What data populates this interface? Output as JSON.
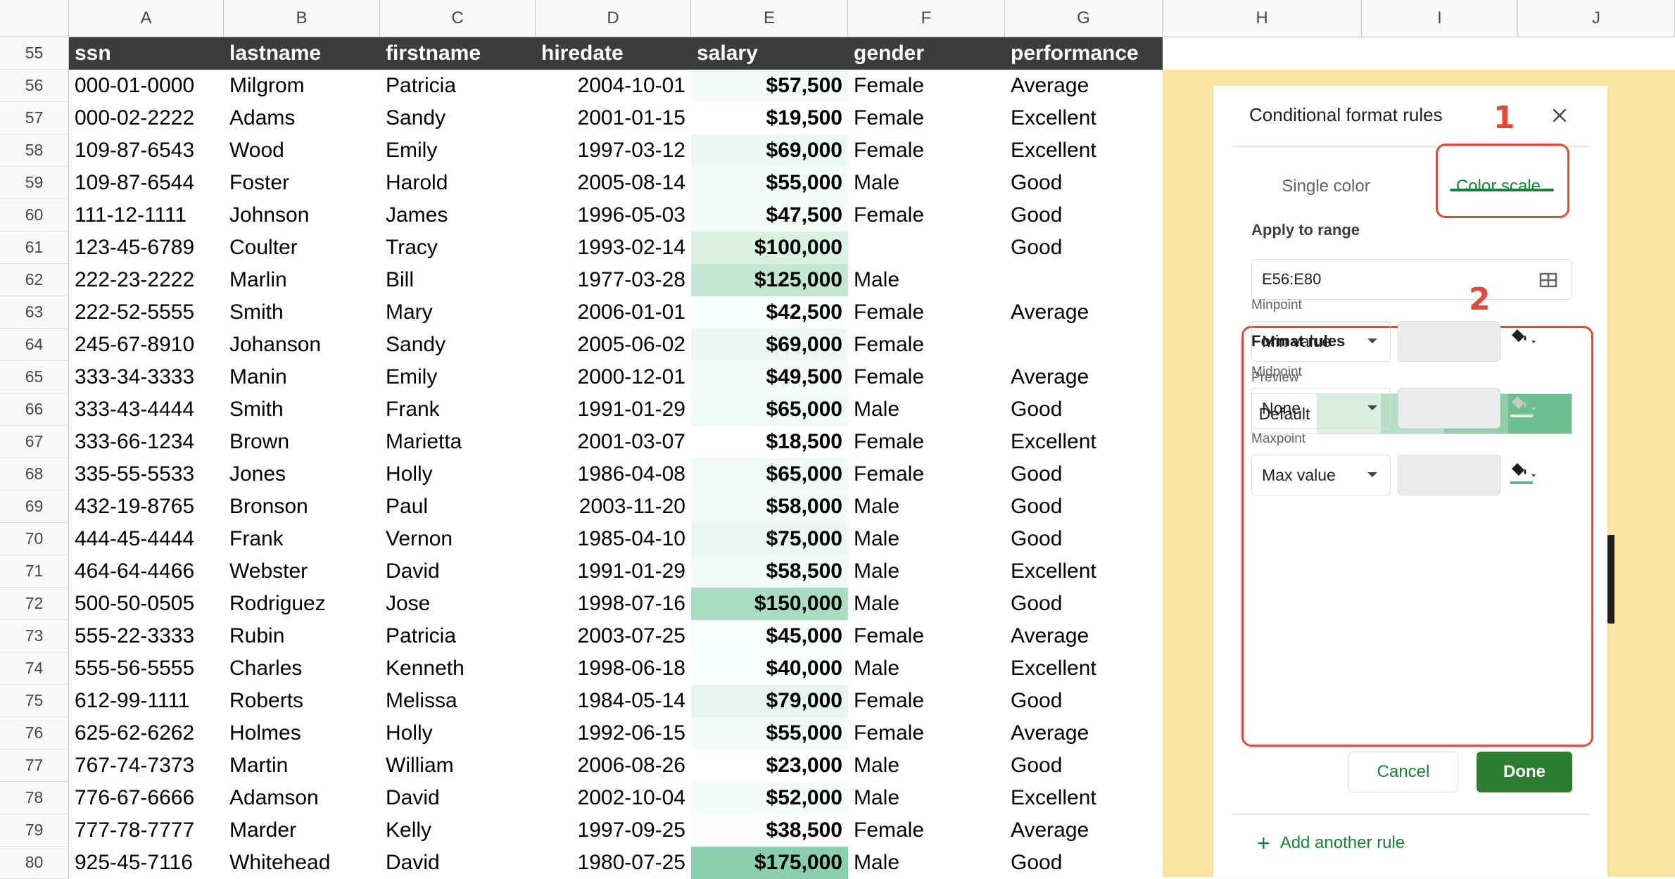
{
  "sheet": {
    "column_letters": [
      "A",
      "B",
      "C",
      "D",
      "E",
      "F",
      "G",
      "H",
      "I",
      "J"
    ],
    "header_row_number": "55",
    "headers": [
      "ssn",
      "lastname",
      "firstname",
      "hiredate",
      "salary",
      "gender",
      "performance"
    ],
    "rows": [
      {
        "num": "56",
        "ssn": "000-01-0000",
        "lastname": "Milgrom",
        "firstname": "Patricia",
        "hiredate": "2004-10-01",
        "salary": "$57,500",
        "gender": "Female",
        "performance": "Average",
        "scale": 0.25
      },
      {
        "num": "57",
        "ssn": "000-02-2222",
        "lastname": "Adams",
        "firstname": "Sandy",
        "hiredate": "2001-01-15",
        "salary": "$19,500",
        "gender": "Female",
        "performance": "Excellent",
        "scale": 0.01
      },
      {
        "num": "58",
        "ssn": "109-87-6543",
        "lastname": "Wood",
        "firstname": "Emily",
        "hiredate": "1997-03-12",
        "salary": "$69,000",
        "gender": "Female",
        "performance": "Excellent",
        "scale": 0.32
      },
      {
        "num": "59",
        "ssn": "109-87-6544",
        "lastname": "Foster",
        "firstname": "Harold",
        "hiredate": "2005-08-14",
        "salary": "$55,000",
        "gender": "Male",
        "performance": "Good",
        "scale": 0.23
      },
      {
        "num": "60",
        "ssn": "111-12-1111",
        "lastname": "Johnson",
        "firstname": "James",
        "hiredate": "1996-05-03",
        "salary": "$47,500",
        "gender": "Female",
        "performance": "Good",
        "scale": 0.18
      },
      {
        "num": "61",
        "ssn": "123-45-6789",
        "lastname": "Coulter",
        "firstname": "Tracy",
        "hiredate": "1993-02-14",
        "salary": "$100,000",
        "gender": "",
        "performance": "Good",
        "scale": 0.52
      },
      {
        "num": "62",
        "ssn": "222-23-2222",
        "lastname": "Marlin",
        "firstname": "Bill",
        "hiredate": "1977-03-28",
        "salary": "$125,000",
        "gender": "Male",
        "performance": "",
        "scale": 0.68
      },
      {
        "num": "63",
        "ssn": "222-52-5555",
        "lastname": "Smith",
        "firstname": "Mary",
        "hiredate": "2006-01-01",
        "salary": "$42,500",
        "gender": "Female",
        "performance": "Average",
        "scale": 0.15
      },
      {
        "num": "64",
        "ssn": "245-67-8910",
        "lastname": "Johanson",
        "firstname": "Sandy",
        "hiredate": "2005-06-02",
        "salary": "$69,000",
        "gender": "Female",
        "performance": "",
        "scale": 0.32
      },
      {
        "num": "65",
        "ssn": "333-34-3333",
        "lastname": "Manin",
        "firstname": "Emily",
        "hiredate": "2000-12-01",
        "salary": "$49,500",
        "gender": "Female",
        "performance": "Average",
        "scale": 0.2
      },
      {
        "num": "66",
        "ssn": "333-43-4444",
        "lastname": "Smith",
        "firstname": "Frank",
        "hiredate": "1991-01-29",
        "salary": "$65,000",
        "gender": "Male",
        "performance": "Good",
        "scale": 0.29
      },
      {
        "num": "67",
        "ssn": "333-66-1234",
        "lastname": "Brown",
        "firstname": "Marietta",
        "hiredate": "2001-03-07",
        "salary": "$18,500",
        "gender": "Female",
        "performance": "Excellent",
        "scale": 0.0
      },
      {
        "num": "68",
        "ssn": "335-55-5533",
        "lastname": "Jones",
        "firstname": "Holly",
        "hiredate": "1986-04-08",
        "salary": "$65,000",
        "gender": "Female",
        "performance": "Good",
        "scale": 0.29
      },
      {
        "num": "69",
        "ssn": "432-19-8765",
        "lastname": "Bronson",
        "firstname": "Paul",
        "hiredate": "2003-11-20",
        "salary": "$58,000",
        "gender": "Male",
        "performance": "Good",
        "scale": 0.25
      },
      {
        "num": "70",
        "ssn": "444-45-4444",
        "lastname": "Frank",
        "firstname": "Vernon",
        "hiredate": "1985-04-10",
        "salary": "$75,000",
        "gender": "Male",
        "performance": "Good",
        "scale": 0.36
      },
      {
        "num": "71",
        "ssn": "464-64-4466",
        "lastname": "Webster",
        "firstname": "David",
        "hiredate": "1991-01-29",
        "salary": "$58,500",
        "gender": "Male",
        "performance": "Excellent",
        "scale": 0.26
      },
      {
        "num": "72",
        "ssn": "500-50-0505",
        "lastname": "Rodriguez",
        "firstname": "Jose",
        "hiredate": "1998-07-16",
        "salary": "$150,000",
        "gender": "Male",
        "performance": "Good",
        "scale": 0.84
      },
      {
        "num": "73",
        "ssn": "555-22-3333",
        "lastname": "Rubin",
        "firstname": "Patricia",
        "hiredate": "2003-07-25",
        "salary": "$45,000",
        "gender": "Female",
        "performance": "Average",
        "scale": 0.17
      },
      {
        "num": "74",
        "ssn": "555-56-5555",
        "lastname": "Charles",
        "firstname": "Kenneth",
        "hiredate": "1998-06-18",
        "salary": "$40,000",
        "gender": "Male",
        "performance": "Excellent",
        "scale": 0.14
      },
      {
        "num": "75",
        "ssn": "612-99-1111",
        "lastname": "Roberts",
        "firstname": "Melissa",
        "hiredate": "1984-05-14",
        "salary": "$79,000",
        "gender": "Female",
        "performance": "Good",
        "scale": 0.39
      },
      {
        "num": "76",
        "ssn": "625-62-6262",
        "lastname": "Holmes",
        "firstname": "Holly",
        "hiredate": "1992-06-15",
        "salary": "$55,000",
        "gender": "Female",
        "performance": "Average",
        "scale": 0.23
      },
      {
        "num": "77",
        "ssn": "767-74-7373",
        "lastname": "Martin",
        "firstname": "William",
        "hiredate": "2006-08-26",
        "salary": "$23,000",
        "gender": "Male",
        "performance": "Good",
        "scale": 0.03
      },
      {
        "num": "78",
        "ssn": "776-67-6666",
        "lastname": "Adamson",
        "firstname": "David",
        "hiredate": "2002-10-04",
        "salary": "$52,000",
        "gender": "Male",
        "performance": "Excellent",
        "scale": 0.21
      },
      {
        "num": "79",
        "ssn": "777-78-7777",
        "lastname": "Marder",
        "firstname": "Kelly",
        "hiredate": "1997-09-25",
        "salary": "$38,500",
        "gender": "Female",
        "performance": "Average",
        "scale": 0.13
      },
      {
        "num": "80",
        "ssn": "925-45-7116",
        "lastname": "Whitehead",
        "firstname": "David",
        "hiredate": "1980-07-25",
        "salary": "$175,000",
        "gender": "Male",
        "performance": "Good",
        "scale": 1.0
      }
    ]
  },
  "panel": {
    "title": "Conditional format rules",
    "tabs": [
      {
        "label": "Single color"
      },
      {
        "label": "Color scale"
      }
    ],
    "active_tab": "Color scale",
    "apply_to_range_label": "Apply to range",
    "range_value": "E56:E80",
    "format_rules_label": "Format rules",
    "preview_label": "Preview",
    "preview_text": "Default",
    "preview_colors": [
      "#d9efe3",
      "#b4dfc6",
      "#8ecfa8",
      "#6bbf8c"
    ],
    "minpoint_label": "Minpoint",
    "minpoint_value": "Min value",
    "midpoint_label": "Midpoint",
    "midpoint_value": "None",
    "maxpoint_label": "Maxpoint",
    "maxpoint_value": "Max value",
    "cancel_label": "Cancel",
    "done_label": "Done",
    "add_rule_label": "Add another rule",
    "annotation_1": "1",
    "annotation_2": "2"
  },
  "colors": {
    "accent_green": "#188038",
    "done_green": "#2e7d32",
    "annotation_red": "#e04a36",
    "header_dark": "#3c3c3c",
    "highlight_yellow": "#fbe5a2",
    "scale_min": "#ffffff",
    "scale_max": "#57bb8a"
  },
  "icons": [
    "close-icon",
    "grid-select-icon",
    "paint-bucket-icon",
    "dropdown-caret-icon",
    "plus-icon"
  ]
}
